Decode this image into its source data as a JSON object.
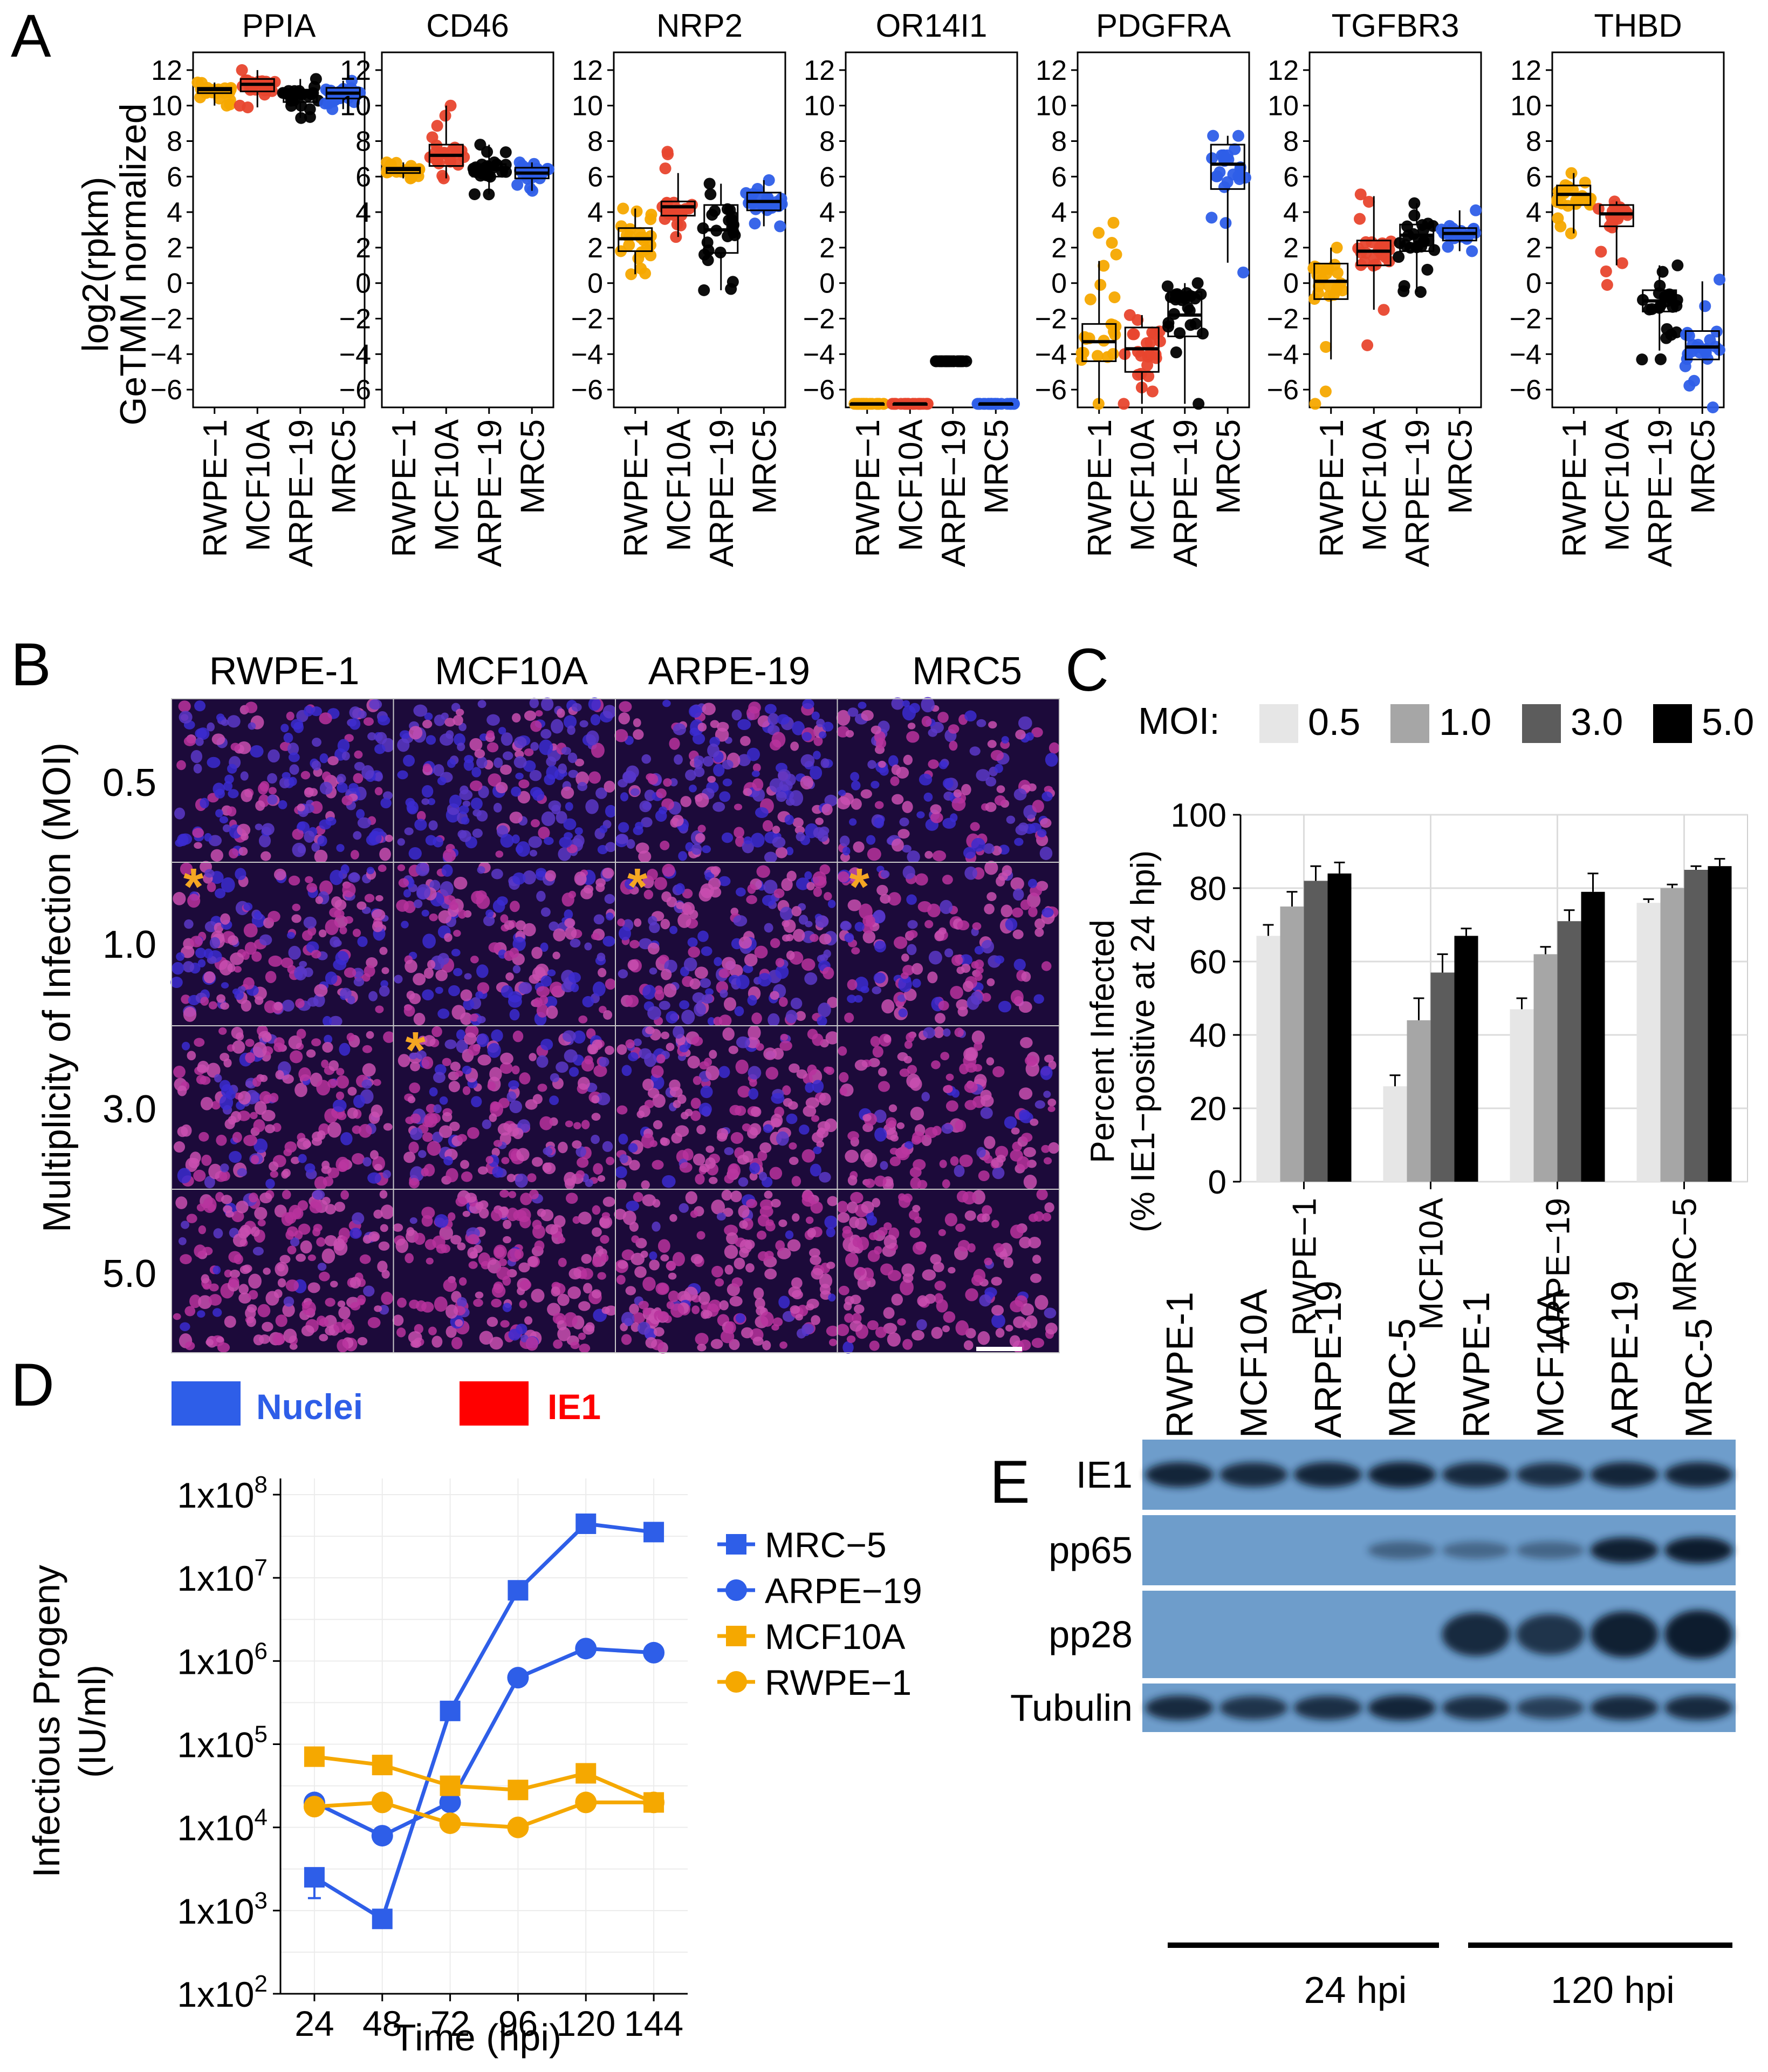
{
  "colors": {
    "RWPE-1": "#F5A800",
    "MCF10A": "#E8462E",
    "ARPE-19": "#000000",
    "MRC5": "#2E5EE8",
    "moi": [
      "#e6e6e6",
      "#a6a6a6",
      "#5c5c5c",
      "#000000"
    ],
    "nuclei": "#2E5EE8",
    "ie1": "#FF0000",
    "blot_bg": "#6E9DCB",
    "asterisk": "#F5A623"
  },
  "panels": {
    "A": "A",
    "B": "B",
    "C": "C",
    "D": "D",
    "E": "E"
  },
  "chart_data": [
    {
      "panel": "A",
      "type": "scatter",
      "subtype": "box-and-points",
      "ylabel_line1": "log2(rpkm)",
      "ylabel_line2": "GeTMM normalized",
      "ylim": [
        -7,
        13
      ],
      "yticks": [
        "12",
        "10",
        "8",
        "6",
        "4",
        "2",
        "0",
        "−2",
        "−4",
        "−6"
      ],
      "categories": [
        "RWPE−1",
        "MCF10A",
        "ARPE−19",
        "MRC5"
      ],
      "genes": [
        {
          "gene": "PPIA",
          "medians": [
            10.9,
            11.2,
            10.6,
            10.7
          ],
          "q1": [
            10.7,
            10.8,
            10.2,
            10.4
          ],
          "q3": [
            11.0,
            11.5,
            10.9,
            11.0
          ],
          "min": [
            10.0,
            9.9,
            9.3,
            9.8
          ],
          "max": [
            11.3,
            12.0,
            11.5,
            11.4
          ]
        },
        {
          "gene": "CD46",
          "medians": [
            6.4,
            7.2,
            6.4,
            6.2
          ],
          "q1": [
            6.2,
            6.6,
            6.0,
            5.9
          ],
          "q3": [
            6.5,
            7.8,
            6.7,
            6.5
          ],
          "min": [
            5.9,
            5.9,
            5.0,
            5.2
          ],
          "max": [
            6.8,
            10.0,
            7.8,
            6.8
          ]
        },
        {
          "gene": "NRP2",
          "medians": [
            2.5,
            4.3,
            3.0,
            4.6
          ],
          "q1": [
            1.8,
            3.8,
            1.7,
            4.1
          ],
          "q3": [
            3.1,
            4.6,
            4.4,
            5.1
          ],
          "min": [
            0.5,
            2.6,
            -0.4,
            3.2
          ],
          "max": [
            4.2,
            7.4,
            5.6,
            5.8
          ]
        },
        {
          "gene": "OR14I1",
          "medians": [
            -6.8,
            -6.8,
            -4.4,
            -6.8
          ],
          "q1": [
            -6.8,
            -6.8,
            -4.4,
            -6.8
          ],
          "q3": [
            -6.8,
            -6.8,
            -4.4,
            -6.8
          ],
          "min": [
            -6.8,
            -6.8,
            -4.4,
            -6.8
          ],
          "max": [
            -6.8,
            -6.8,
            -4.4,
            -6.8
          ]
        },
        {
          "gene": "PDGFRA",
          "medians": [
            -3.3,
            -3.7,
            -1.8,
            6.7
          ],
          "q1": [
            -4.4,
            -5.0,
            -3.0,
            5.3
          ],
          "q3": [
            -2.3,
            -2.5,
            -0.5,
            7.8
          ],
          "min": [
            -6.8,
            -6.8,
            -6.8,
            0.6
          ],
          "max": [
            3.4,
            -1.8,
            0.0,
            8.3
          ]
        },
        {
          "gene": "TGFBR3",
          "medians": [
            0.1,
            1.8,
            2.7,
            2.8
          ],
          "q1": [
            -0.9,
            1.0,
            1.8,
            2.4
          ],
          "q3": [
            1.1,
            2.4,
            3.3,
            3.1
          ],
          "min": [
            -6.8,
            -3.5,
            -0.5,
            1.8
          ],
          "max": [
            2.0,
            5.0,
            4.5,
            4.1
          ]
        },
        {
          "gene": "THBD",
          "medians": [
            5.0,
            3.9,
            -1.0,
            -3.6
          ],
          "q1": [
            4.4,
            3.2,
            -1.6,
            -4.3
          ],
          "q3": [
            5.5,
            4.4,
            -0.4,
            -2.7
          ],
          "min": [
            2.8,
            -0.1,
            -4.3,
            -7.0
          ],
          "max": [
            6.2,
            4.6,
            1.0,
            0.2
          ]
        }
      ]
    },
    {
      "panel": "C",
      "type": "bar",
      "legend_title": "MOI:",
      "legend_position": "top",
      "ylabel_line1": "Percent Infected",
      "ylabel_line2": "(% IE1−positive at 24 hpi)",
      "ylim": [
        0,
        100
      ],
      "yticks": [
        "0",
        "20",
        "40",
        "60",
        "80",
        "100"
      ],
      "categories": [
        "RWPE−1",
        "MCF10A",
        "ARPE−19",
        "MRC−5"
      ],
      "series": [
        {
          "name": "0.5",
          "values": [
            67,
            26,
            47,
            76
          ],
          "errors": [
            3,
            3,
            3,
            1
          ]
        },
        {
          "name": "1.0",
          "values": [
            75,
            44,
            62,
            80
          ],
          "errors": [
            4,
            6,
            2,
            1
          ]
        },
        {
          "name": "3.0",
          "values": [
            82,
            57,
            71,
            85
          ],
          "errors": [
            4,
            5,
            3,
            1
          ]
        },
        {
          "name": "5.0",
          "values": [
            84,
            67,
            79,
            86
          ],
          "errors": [
            3,
            2,
            5,
            2
          ]
        }
      ]
    },
    {
      "panel": "D",
      "type": "line",
      "yscale": "log",
      "ylabel_line1": "Infectious Progeny",
      "ylabel_line2": "(IU/ml)",
      "xlabel": "Time (hpi)",
      "x": [
        24,
        48,
        72,
        96,
        120,
        144
      ],
      "xticks": [
        "24",
        "48",
        "72",
        "96",
        "120",
        "144"
      ],
      "ylim_log10": [
        2,
        8
      ],
      "yticks": [
        {
          "base": "1x10",
          "exp": "2"
        },
        {
          "base": "1x10",
          "exp": "3"
        },
        {
          "base": "1x10",
          "exp": "4"
        },
        {
          "base": "1x10",
          "exp": "5"
        },
        {
          "base": "1x10",
          "exp": "6"
        },
        {
          "base": "1x10",
          "exp": "7"
        },
        {
          "base": "1x10",
          "exp": "8"
        }
      ],
      "legend_position": "right",
      "series": [
        {
          "name": "MRC−5",
          "marker": "square",
          "color_key": "MRC5",
          "log10_values": [
            3.4,
            2.9,
            5.4,
            6.85,
            7.65,
            7.55
          ]
        },
        {
          "name": "ARPE−19",
          "marker": "circle",
          "color_key": "MRC5",
          "log10_values": [
            4.3,
            3.9,
            4.3,
            5.8,
            6.15,
            6.1
          ]
        },
        {
          "name": "MCF10A",
          "marker": "square",
          "color_key": "RWPE-1",
          "log10_values": [
            4.85,
            4.75,
            4.5,
            4.45,
            4.65,
            4.3
          ]
        },
        {
          "name": "RWPE−1",
          "marker": "circle",
          "color_key": "RWPE-1",
          "log10_values": [
            4.25,
            4.3,
            4.05,
            4.0,
            4.3,
            4.3
          ]
        }
      ]
    }
  ],
  "panelB": {
    "columns": [
      "RWPE-1",
      "MCF10A",
      "ARPE-19",
      "MRC5"
    ],
    "rows": [
      "0.5",
      "1.0",
      "3.0",
      "5.0"
    ],
    "ylabel": "Multiplicity of Infection (MOI)",
    "asterisk": "*",
    "legend": {
      "nuclei": "Nuclei",
      "ie1": "IE1"
    }
  },
  "panelE": {
    "lanes": [
      "RWPE-1",
      "MCF10A",
      "ARPE-19",
      "MRC-5",
      "RWPE-1",
      "MCF10A",
      "ARPE-19",
      "MRC-5"
    ],
    "rows": [
      "IE1",
      "pp65",
      "pp28",
      "Tubulin"
    ],
    "groups": [
      "24 hpi",
      "120 hpi"
    ],
    "band_intensity": [
      [
        0.85,
        0.8,
        0.85,
        0.9,
        0.8,
        0.75,
        0.85,
        0.85
      ],
      [
        0.0,
        0.0,
        0.0,
        0.25,
        0.2,
        0.22,
        0.9,
        0.95
      ],
      [
        0.0,
        0.0,
        0.0,
        0.0,
        0.8,
        0.7,
        0.9,
        1.0
      ],
      [
        0.8,
        0.7,
        0.75,
        0.85,
        0.75,
        0.6,
        0.8,
        0.8
      ]
    ]
  }
}
